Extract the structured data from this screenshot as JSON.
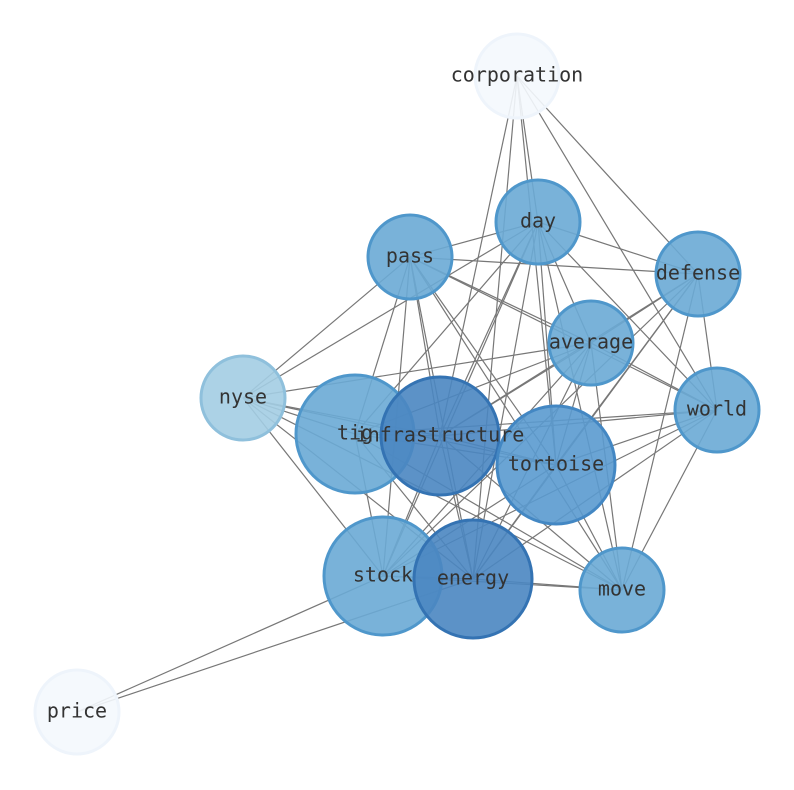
{
  "nodes": [
    {
      "label": "corporation"
    },
    {
      "label": "day"
    },
    {
      "label": "pass"
    },
    {
      "label": "defense"
    },
    {
      "label": "average"
    },
    {
      "label": "nyse"
    },
    {
      "label": "world"
    },
    {
      "label": "tig"
    },
    {
      "label": "infrastructure"
    },
    {
      "label": "tortoise"
    },
    {
      "label": "stock"
    },
    {
      "label": "energy"
    },
    {
      "label": "move"
    },
    {
      "label": "price"
    }
  ]
}
